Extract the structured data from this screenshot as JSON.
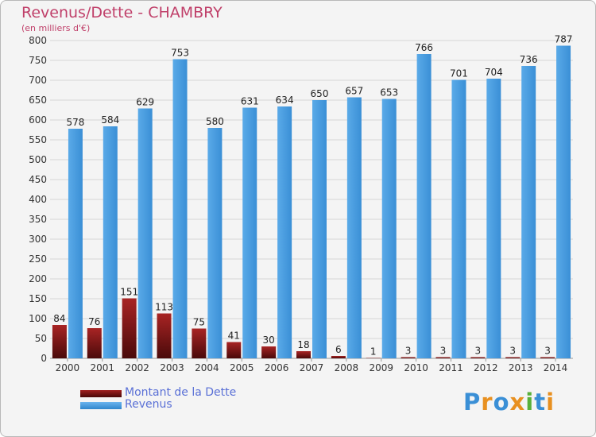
{
  "title": "Revenus/Dette - CHAMBRY",
  "subtitle": "(en milliers d'€)",
  "logo_text": "Proxiti",
  "colors": {
    "dette": "#7a1414",
    "revenus": "#4a9fe0",
    "title": "#c0406a",
    "legend_text": "#5a70d6"
  },
  "legend": {
    "dette_label": "Montant de la Dette",
    "revenus_label": "Revenus"
  },
  "chart_data": {
    "type": "bar",
    "title": "Revenus/Dette - CHAMBRY",
    "subtitle": "(en milliers d'€)",
    "categories": [
      "2000",
      "2001",
      "2002",
      "2003",
      "2004",
      "2005",
      "2006",
      "2007",
      "2008",
      "2009",
      "2010",
      "2011",
      "2012",
      "2013",
      "2014"
    ],
    "series": [
      {
        "name": "Montant de la Dette",
        "values": [
          84,
          76,
          151,
          113,
          75,
          41,
          30,
          18,
          6,
          1,
          3,
          3,
          3,
          3,
          3
        ]
      },
      {
        "name": "Revenus",
        "values": [
          578,
          584,
          629,
          753,
          580,
          631,
          634,
          650,
          657,
          653,
          766,
          701,
          704,
          736,
          787
        ]
      }
    ],
    "yticks": [
      0,
      50,
      100,
      150,
      200,
      250,
      300,
      350,
      400,
      450,
      500,
      550,
      600,
      650,
      700,
      750,
      800
    ],
    "ylim": [
      0,
      800
    ],
    "grid": true,
    "legend_position": "bottom-left"
  }
}
